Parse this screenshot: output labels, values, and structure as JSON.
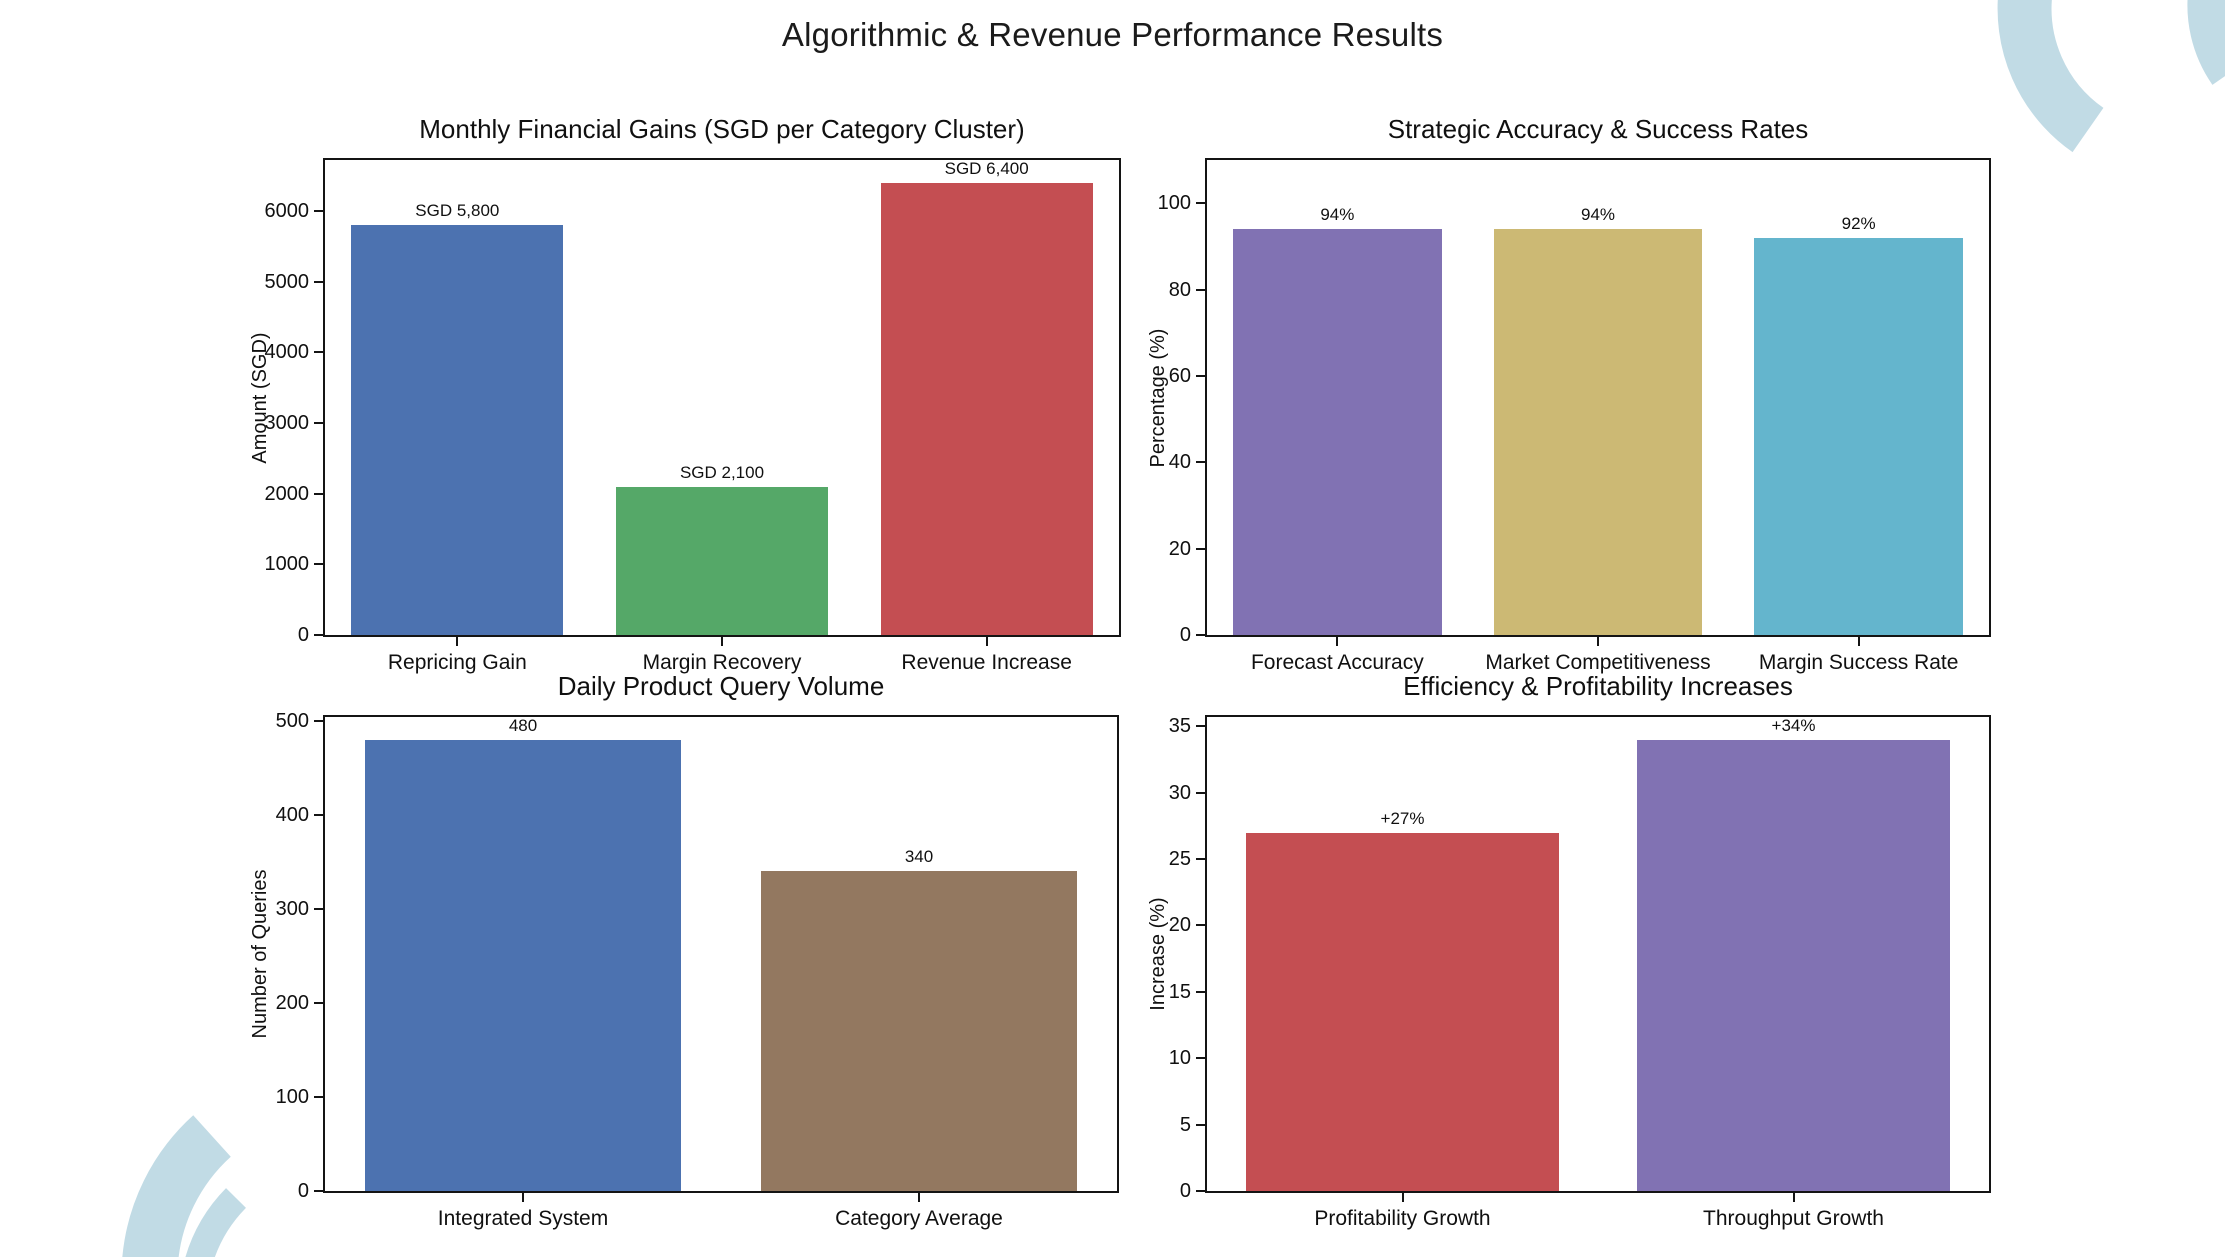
{
  "page_title": "Algorithmic & Revenue Performance Results",
  "decoration": {
    "color": "#c1dbe5"
  },
  "chart_data": [
    {
      "type": "bar",
      "title": "Monthly Financial Gains (SGD per Category Cluster)",
      "xlabel": "",
      "ylabel": "Amount (SGD)",
      "categories": [
        "Repricing Gain",
        "Margin Recovery",
        "Revenue Increase"
      ],
      "values": [
        5800,
        2100,
        6400
      ],
      "bar_labels": [
        "SGD 5,800",
        "SGD 2,100",
        "SGD 6,400"
      ],
      "bar_colors": [
        "#4C72B0",
        "#55A868",
        "#C44E52"
      ],
      "yticks": [
        0,
        1000,
        2000,
        3000,
        4000,
        5000,
        6000
      ],
      "ytick_labels": [
        "0",
        "1000",
        "2000",
        "3000",
        "4000",
        "5000",
        "6000"
      ],
      "ylim": [
        0,
        6720
      ],
      "grid": false,
      "legend": null
    },
    {
      "type": "bar",
      "title": "Strategic Accuracy & Success Rates",
      "xlabel": "",
      "ylabel": "Percentage (%)",
      "categories": [
        "Forecast Accuracy",
        "Market Competitiveness",
        "Margin Success Rate"
      ],
      "values": [
        94,
        94,
        92
      ],
      "bar_labels": [
        "94%",
        "94%",
        "92%"
      ],
      "bar_colors": [
        "#8172B3",
        "#CCB974",
        "#64B5CD"
      ],
      "yticks": [
        0,
        20,
        40,
        60,
        80,
        100
      ],
      "ytick_labels": [
        "0",
        "20",
        "40",
        "60",
        "80",
        "100"
      ],
      "ylim": [
        0,
        110
      ],
      "grid": false,
      "legend": null
    },
    {
      "type": "bar",
      "title": "Daily Product Query Volume",
      "xlabel": "",
      "ylabel": "Number of Queries",
      "categories": [
        "Integrated System",
        "Category Average"
      ],
      "values": [
        480,
        340
      ],
      "bar_labels": [
        "480",
        "340"
      ],
      "bar_colors": [
        "#4C72B0",
        "#937860"
      ],
      "yticks": [
        0,
        100,
        200,
        300,
        400,
        500
      ],
      "ytick_labels": [
        "0",
        "100",
        "200",
        "300",
        "400",
        "500"
      ],
      "ylim": [
        0,
        504
      ],
      "grid": false,
      "legend": null
    },
    {
      "type": "bar",
      "title": "Efficiency & Profitability Increases",
      "xlabel": "",
      "ylabel": "Increase (%)",
      "categories": [
        "Profitability Growth",
        "Throughput Growth"
      ],
      "values": [
        27,
        34
      ],
      "bar_labels": [
        "+27%",
        "+34%"
      ],
      "bar_colors": [
        "#C44E52",
        "#8172B3"
      ],
      "yticks": [
        0,
        5,
        10,
        15,
        20,
        25,
        30,
        35
      ],
      "ytick_labels": [
        "0",
        "5",
        "10",
        "15",
        "20",
        "25",
        "30",
        "35"
      ],
      "ylim": [
        0,
        35.7
      ],
      "grid": false,
      "legend": null
    }
  ]
}
